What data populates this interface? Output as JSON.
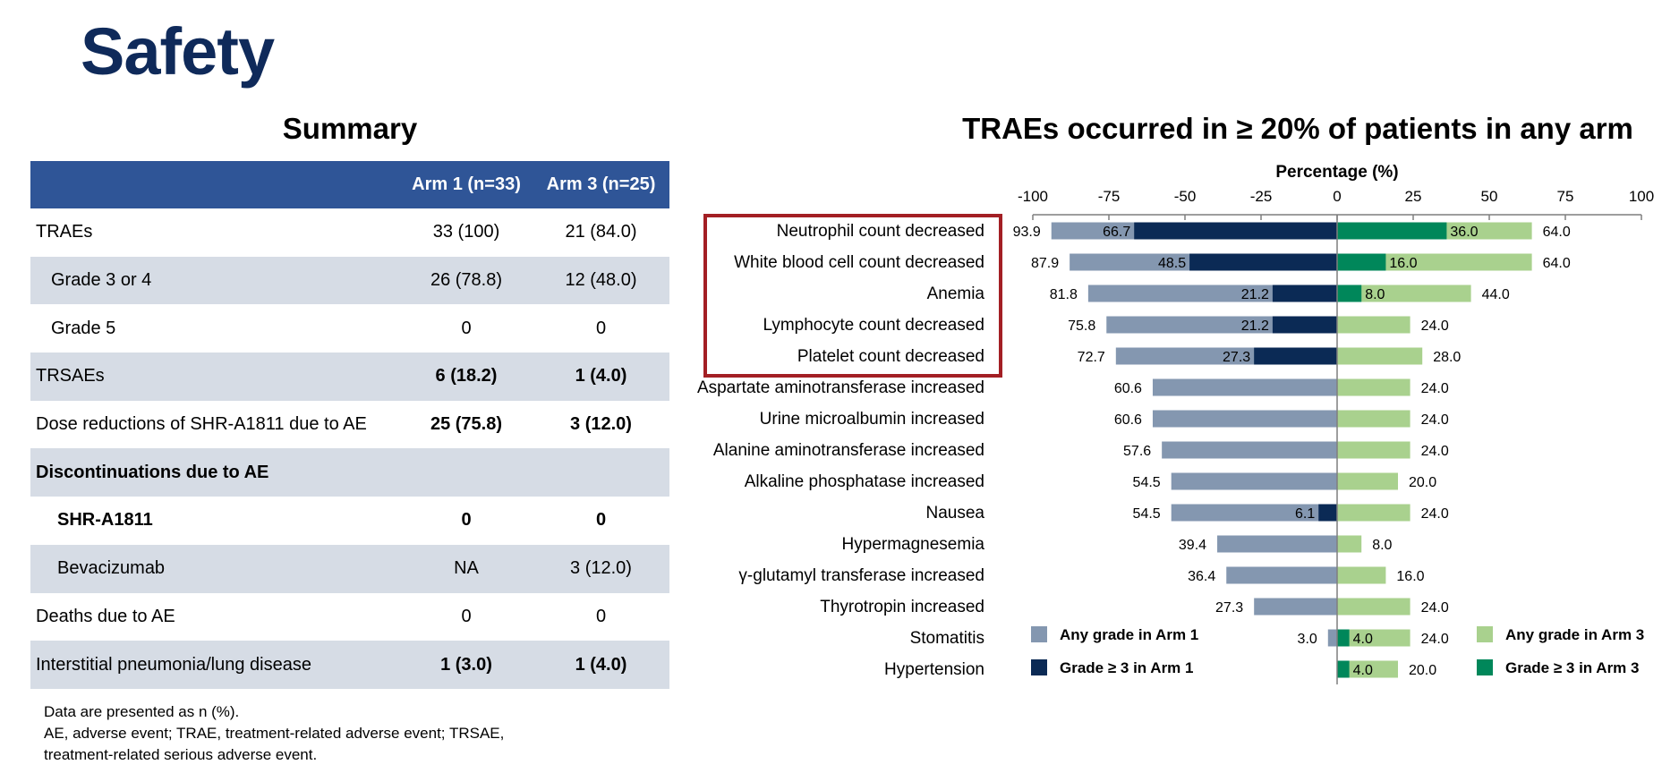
{
  "page_title": "Safety",
  "summary": {
    "title": "Summary",
    "columns": [
      "",
      "Arm 1 (n=33)",
      "Arm 3  (n=25)"
    ],
    "rows": [
      {
        "label": "TRAEs",
        "arm1": "33 (100)",
        "arm3": "21 (84.0)"
      },
      {
        "label": "Grade 3 or 4",
        "arm1": "26 (78.8)",
        "arm3": "12 (48.0)"
      },
      {
        "label": "Grade 5",
        "arm1": "0",
        "arm3": "0"
      },
      {
        "label": "TRSAEs",
        "arm1": "6 (18.2)",
        "arm3": "1 (4.0)"
      },
      {
        "label": "Dose reductions of SHR-A1811 due to AE",
        "arm1": "25 (75.8)",
        "arm3": "3 (12.0)"
      },
      {
        "label": "Discontinuations due to AE",
        "arm1": "",
        "arm3": ""
      },
      {
        "label": "SHR-A1811",
        "arm1": "0",
        "arm3": "0"
      },
      {
        "label": "Bevacizumab",
        "arm1": "NA",
        "arm3": "3 (12.0)"
      },
      {
        "label": "Deaths due to AE",
        "arm1": "0",
        "arm3": "0"
      },
      {
        "label": "Interstitial pneumonia/lung disease",
        "arm1": "1 (3.0)",
        "arm3": "1 (4.0)"
      }
    ],
    "footnote_line1": "Data are presented as n (%).",
    "footnote_line2": "AE, adverse event; TRAE, treatment-related adverse event; TRSAE,",
    "footnote_line3": "treatment-related serious adverse event."
  },
  "chart_data": {
    "type": "bar",
    "orientation": "horizontal-diverging",
    "title": "TRAEs occurred in ≥ 20% of patients in any arm",
    "xlabel": "Percentage (%)",
    "xlim": [
      -100,
      100
    ],
    "xticks": [
      -100,
      -75,
      -50,
      -25,
      0,
      25,
      50,
      75,
      100
    ],
    "categories": [
      "Neutrophil count decreased",
      "White blood cell count decreased",
      "Anemia",
      "Lymphocyte count decreased",
      "Platelet count decreased",
      "Aspartate aminotransferase increased",
      "Urine microalbumin increased",
      "Alanine aminotransferase increased",
      "Alkaline phosphatase increased",
      "Nausea",
      "Hypermagnesemia",
      "γ-glutamyl transferase increased",
      "Thyrotropin increased",
      "Stomatitis",
      "Hypertension"
    ],
    "highlighted_categories": [
      0,
      1,
      2,
      3,
      4
    ],
    "series": [
      {
        "name": "Any grade in Arm 1",
        "side": "left",
        "color": "#8497b0",
        "values": [
          93.9,
          87.9,
          81.8,
          75.8,
          72.7,
          60.6,
          60.6,
          57.6,
          54.5,
          54.5,
          39.4,
          36.4,
          27.3,
          3.0,
          null
        ]
      },
      {
        "name": "Grade ≥ 3  in Arm 1",
        "side": "left",
        "color": "#0b2a55",
        "values": [
          66.7,
          48.5,
          21.2,
          21.2,
          27.3,
          null,
          null,
          null,
          null,
          6.1,
          null,
          null,
          null,
          null,
          null
        ]
      },
      {
        "name": "Any grade in Arm 3",
        "side": "right",
        "color": "#a9d18e",
        "values": [
          64.0,
          64.0,
          44.0,
          24.0,
          28.0,
          24.0,
          24.0,
          24.0,
          20.0,
          24.0,
          8.0,
          16.0,
          24.0,
          24.0,
          20.0
        ]
      },
      {
        "name": "Grade ≥ 3  in Arm 3",
        "side": "right",
        "color": "#00875a",
        "values": [
          36.0,
          16.0,
          8.0,
          null,
          null,
          null,
          null,
          null,
          null,
          null,
          null,
          null,
          null,
          4.0,
          4.0
        ]
      }
    ],
    "highlight_color": "#a31f24",
    "legend_placement": "bottom, split left and right"
  }
}
